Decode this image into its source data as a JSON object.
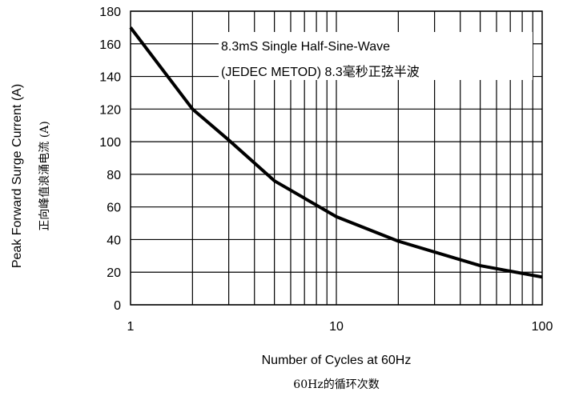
{
  "chart_data": {
    "type": "line",
    "x_scale": "log",
    "x": [
      1,
      2,
      3,
      5,
      10,
      20,
      50,
      100
    ],
    "series": [
      {
        "values": [
          170,
          120,
          101,
          76,
          54,
          39,
          24,
          17
        ]
      }
    ],
    "xlim": [
      1,
      100
    ],
    "ylim": [
      0,
      180
    ],
    "x_ticks": [
      "1",
      "10",
      "100"
    ],
    "y_ticks": [
      "0",
      "20",
      "40",
      "60",
      "80",
      "100",
      "120",
      "140",
      "160",
      "180"
    ],
    "xlabel": "Number of Cycles at 60Hz",
    "xlabel_cn": "60Hz的循环次数",
    "ylabel": "Peak Forward Surge Current (A)",
    "ylabel_cn": "正向峰值浪涌电流 (A)",
    "annotation_line1": "8.3mS Single Half-Sine-Wave",
    "annotation_line2": "(JEDEC METOD)  8.3毫秒正弦半波",
    "grid": true,
    "line_color": "#000000"
  }
}
